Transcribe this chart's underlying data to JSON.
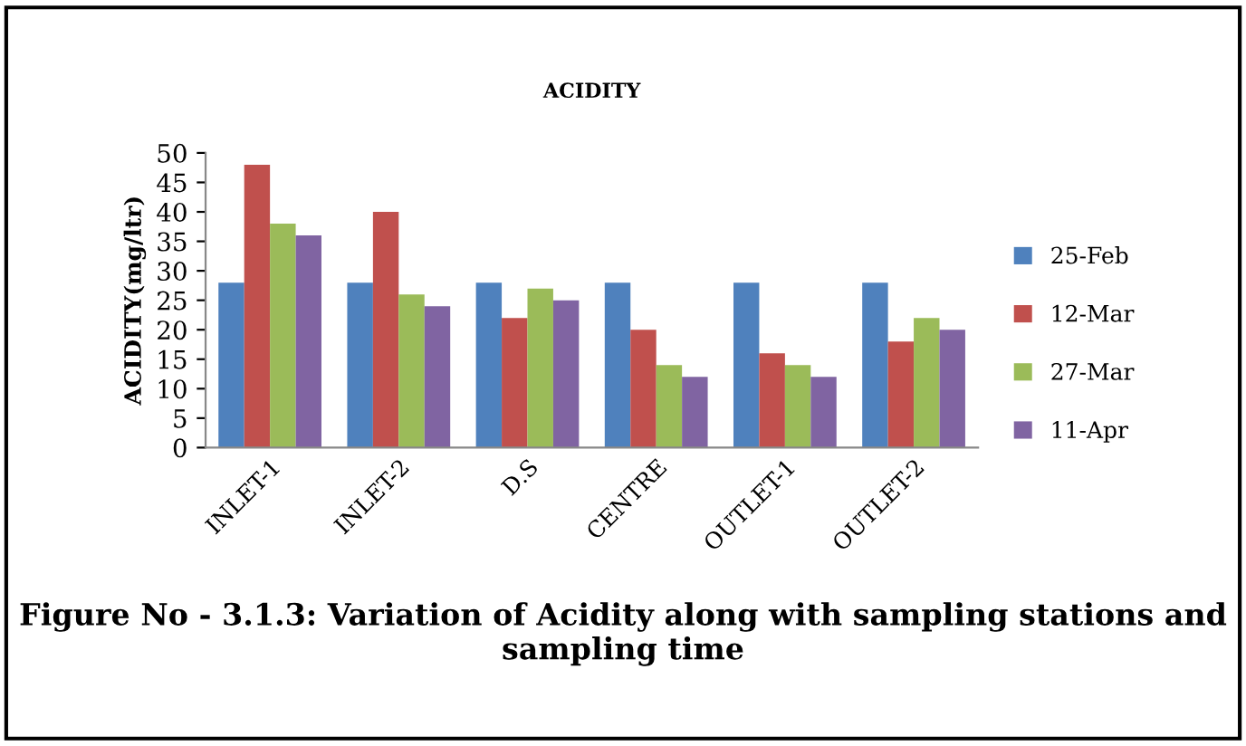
{
  "chart_data": {
    "type": "bar",
    "title": "ACIDITY",
    "ylabel": "ACIDITY(mg/ltr)",
    "categories": [
      "INLET-1",
      "INLET-2",
      "D.S",
      "CENTRE",
      "OUTLET-1",
      "OUTLET-2"
    ],
    "series": [
      {
        "name": "25-Feb",
        "color": "#4f81bd",
        "values": [
          28,
          28,
          28,
          28,
          28,
          28
        ]
      },
      {
        "name": "12-Mar",
        "color": "#c0504d",
        "values": [
          48,
          40,
          22,
          20,
          16,
          18
        ]
      },
      {
        "name": "27-Mar",
        "color": "#9bbb59",
        "values": [
          38,
          26,
          27,
          14,
          14,
          22
        ]
      },
      {
        "name": "11-Apr",
        "color": "#8064a2",
        "values": [
          36,
          24,
          25,
          12,
          12,
          20
        ]
      }
    ],
    "ylim": [
      0,
      50
    ],
    "yticks": [
      0,
      5,
      10,
      15,
      20,
      25,
      30,
      35,
      40,
      45,
      50
    ],
    "grid": false,
    "legend": "right",
    "annotations": [
      "Figure No - 3.1.3: Variation of Acidity along with sampling stations and sampling time"
    ]
  }
}
